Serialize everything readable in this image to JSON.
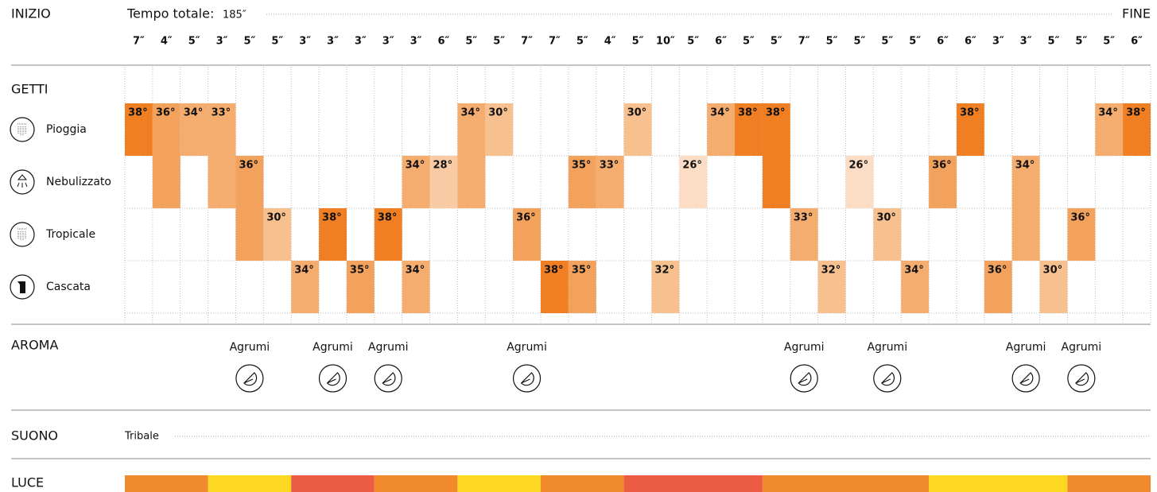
{
  "header": {
    "start": "INIZIO",
    "total_label": "Tempo totale:",
    "total": "185″",
    "end": "FINE"
  },
  "sections": {
    "getti": "GETTI",
    "aroma": "AROMA",
    "suono": "SUONO",
    "luce": "LUCE"
  },
  "getti": [
    "Pioggia",
    "Nebulizzato",
    "Tropicale",
    "Cascata"
  ],
  "suono": "Tribale",
  "steps": [
    {
      "duration": "7″",
      "jets": [
        {
          "temp": "38°",
          "rows": [
            0
          ]
        }
      ]
    },
    {
      "duration": "4″",
      "jets": [
        {
          "temp": "36°",
          "rows": [
            0,
            1
          ]
        }
      ]
    },
    {
      "duration": "5″",
      "jets": [
        {
          "temp": "34°",
          "rows": [
            0
          ]
        }
      ]
    },
    {
      "duration": "3″",
      "jets": [
        {
          "temp": "33°",
          "rows": [
            0,
            1
          ]
        }
      ]
    },
    {
      "duration": "5″",
      "jets": [
        {
          "temp": "36°",
          "rows": [
            1,
            2
          ]
        }
      ],
      "aroma": "Agrumi"
    },
    {
      "duration": "5″",
      "jets": [
        {
          "temp": "30°",
          "rows": [
            2
          ]
        }
      ]
    },
    {
      "duration": "3″",
      "jets": [
        {
          "temp": "34°",
          "rows": [
            3
          ]
        }
      ]
    },
    {
      "duration": "3″",
      "jets": [
        {
          "temp": "38°",
          "rows": [
            2
          ]
        }
      ],
      "aroma": "Agrumi"
    },
    {
      "duration": "3″",
      "jets": [
        {
          "temp": "35°",
          "rows": [
            3
          ]
        }
      ]
    },
    {
      "duration": "3″",
      "jets": [
        {
          "temp": "38°",
          "rows": [
            2
          ]
        }
      ],
      "aroma": "Agrumi"
    },
    {
      "duration": "3″",
      "jets": [
        {
          "temp": "34°",
          "rows": [
            1
          ]
        },
        {
          "temp": "34°",
          "rows": [
            3
          ]
        }
      ]
    },
    {
      "duration": "6″",
      "jets": [
        {
          "temp": "28°",
          "rows": [
            1
          ]
        }
      ]
    },
    {
      "duration": "5″",
      "jets": [
        {
          "temp": "34°",
          "rows": [
            0,
            1
          ]
        }
      ]
    },
    {
      "duration": "5″",
      "jets": [
        {
          "temp": "30°",
          "rows": [
            0
          ]
        }
      ]
    },
    {
      "duration": "7″",
      "jets": [
        {
          "temp": "36°",
          "rows": [
            2
          ]
        }
      ],
      "aroma": "Agrumi"
    },
    {
      "duration": "7″",
      "jets": [
        {
          "temp": "38°",
          "rows": [
            3
          ]
        }
      ]
    },
    {
      "duration": "5″",
      "jets": [
        {
          "temp": "35°",
          "rows": [
            1
          ]
        },
        {
          "temp": "35°",
          "rows": [
            3
          ]
        }
      ]
    },
    {
      "duration": "4″",
      "jets": [
        {
          "temp": "33°",
          "rows": [
            1
          ]
        }
      ]
    },
    {
      "duration": "5″",
      "jets": [
        {
          "temp": "30°",
          "rows": [
            0
          ]
        }
      ]
    },
    {
      "duration": "10″",
      "jets": [
        {
          "temp": "32°",
          "rows": [
            3
          ]
        }
      ]
    },
    {
      "duration": "5″",
      "jets": [
        {
          "temp": "26°",
          "rows": [
            1
          ]
        }
      ]
    },
    {
      "duration": "6″",
      "jets": [
        {
          "temp": "34°",
          "rows": [
            0
          ]
        }
      ]
    },
    {
      "duration": "5″",
      "jets": [
        {
          "temp": "38°",
          "rows": [
            0
          ]
        }
      ]
    },
    {
      "duration": "5″",
      "jets": [
        {
          "temp": "38°",
          "rows": [
            0,
            1
          ]
        }
      ]
    },
    {
      "duration": "7″",
      "jets": [
        {
          "temp": "33°",
          "rows": [
            2
          ]
        }
      ],
      "aroma": "Agrumi"
    },
    {
      "duration": "5″",
      "jets": [
        {
          "temp": "32°",
          "rows": [
            3
          ]
        }
      ]
    },
    {
      "duration": "5″",
      "jets": [
        {
          "temp": "26°",
          "rows": [
            1
          ]
        }
      ]
    },
    {
      "duration": "5″",
      "jets": [
        {
          "temp": "30°",
          "rows": [
            2
          ]
        }
      ],
      "aroma": "Agrumi"
    },
    {
      "duration": "5″",
      "jets": [
        {
          "temp": "34°",
          "rows": [
            3
          ]
        }
      ]
    },
    {
      "duration": "6″",
      "jets": [
        {
          "temp": "36°",
          "rows": [
            1
          ]
        }
      ]
    },
    {
      "duration": "6″",
      "jets": [
        {
          "temp": "38°",
          "rows": [
            0
          ]
        }
      ]
    },
    {
      "duration": "3″",
      "jets": [
        {
          "temp": "36°",
          "rows": [
            3
          ]
        }
      ]
    },
    {
      "duration": "3″",
      "jets": [
        {
          "temp": "34°",
          "rows": [
            1,
            2
          ]
        }
      ],
      "aroma": "Agrumi"
    },
    {
      "duration": "5″",
      "jets": [
        {
          "temp": "30°",
          "rows": [
            3
          ]
        }
      ]
    },
    {
      "duration": "5″",
      "jets": [
        {
          "temp": "36°",
          "rows": [
            2
          ]
        }
      ],
      "aroma": "Agrumi"
    },
    {
      "duration": "5″",
      "jets": [
        {
          "temp": "34°",
          "rows": [
            0
          ]
        }
      ]
    },
    {
      "duration": "6″",
      "jets": [
        {
          "temp": "38°",
          "rows": [
            0
          ]
        }
      ]
    }
  ],
  "luce": [
    {
      "span": 3,
      "color": "#f08a2c"
    },
    {
      "span": 3,
      "color": "#fdd823"
    },
    {
      "span": 3,
      "color": "#ec5c45"
    },
    {
      "span": 3,
      "color": "#f08a2c"
    },
    {
      "span": 3,
      "color": "#fdd823"
    },
    {
      "span": 3,
      "color": "#f08a2c"
    },
    {
      "span": 5,
      "color": "#ec5c45"
    },
    {
      "span": 6,
      "color": "#f08a2c"
    },
    {
      "span": 5,
      "color": "#fdd823"
    },
    {
      "span": 3,
      "color": "#f08a2c"
    }
  ]
}
